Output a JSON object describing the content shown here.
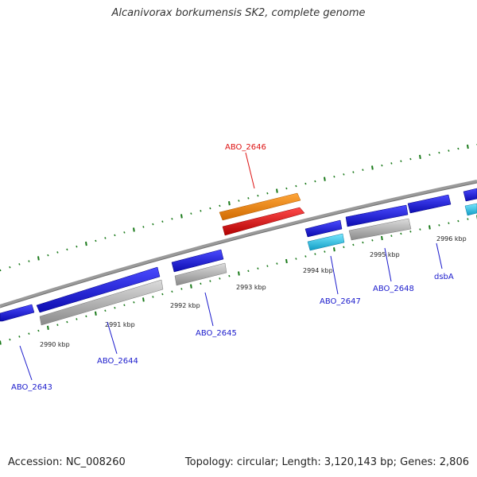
{
  "title": "Alcanivorax borkumensis SK2, complete genome",
  "footer": {
    "accession": "Accession: NC_008260",
    "topology": "Topology: circular; Length: 3,120,143 bp; Genes: 2,806"
  },
  "colors": {
    "background": "#ffffff",
    "backbone": "#8c8c8c",
    "tick": "#1a7a1a",
    "gene_blue": "#1a1ae0",
    "gene_gray": "#c0c0c0",
    "gene_cyan": "#2ad0f0",
    "gene_orange": "#f08c14",
    "gene_red": "#ee1010",
    "label_blue": "#1a1acc",
    "label_red": "#dd1111"
  },
  "scale_labels": [
    "2990 kbp",
    "2991 kbp",
    "2992 kbp",
    "2993 kbp",
    "2994 kbp",
    "2995 kbp",
    "2996 kbp"
  ],
  "gene_labels": [
    {
      "text": "ABO_2643",
      "color": "blue"
    },
    {
      "text": "ABO_2644",
      "color": "blue"
    },
    {
      "text": "ABO_2645",
      "color": "blue"
    },
    {
      "text": "ABO_2646",
      "color": "red"
    },
    {
      "text": "ABO_2647",
      "color": "blue"
    },
    {
      "text": "ABO_2648",
      "color": "blue"
    },
    {
      "text": "dsbA",
      "color": "blue"
    }
  ]
}
